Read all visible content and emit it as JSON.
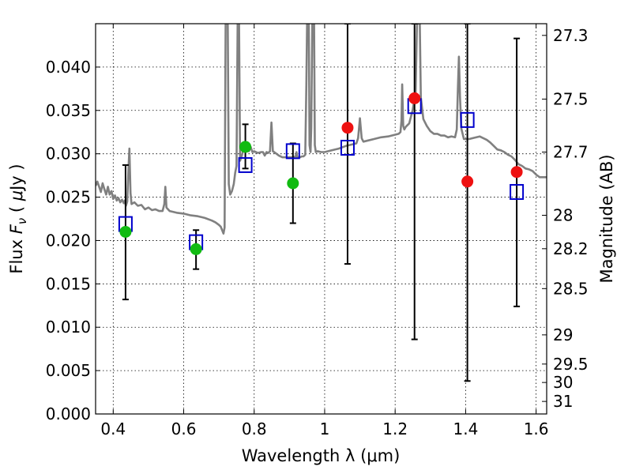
{
  "chart_data": {
    "type": "scatter",
    "xlabel": "Wavelength  λ (μm)",
    "ylabel": "Flux  F_ν  ( μJy )",
    "ylabel_right": "Magnitude (AB)",
    "xlim": [
      0.35,
      1.63
    ],
    "ylim": [
      0.0,
      0.045
    ],
    "grid": true,
    "x_ticks": [
      {
        "value": 0.4,
        "label": "0.4"
      },
      {
        "value": 0.6,
        "label": "0.6"
      },
      {
        "value": 0.8,
        "label": "0.8"
      },
      {
        "value": 1.0,
        "label": "1"
      },
      {
        "value": 1.2,
        "label": "1.2"
      },
      {
        "value": 1.4,
        "label": "1.4"
      },
      {
        "value": 1.6,
        "label": "1.6"
      }
    ],
    "y_ticks": [
      {
        "value": 0.0,
        "label": "0.000"
      },
      {
        "value": 0.005,
        "label": "0.005"
      },
      {
        "value": 0.01,
        "label": "0.010"
      },
      {
        "value": 0.015,
        "label": "0.015"
      },
      {
        "value": 0.02,
        "label": "0.020"
      },
      {
        "value": 0.025,
        "label": "0.025"
      },
      {
        "value": 0.03,
        "label": "0.030"
      },
      {
        "value": 0.035,
        "label": "0.035"
      },
      {
        "value": 0.04,
        "label": "0.040"
      }
    ],
    "mag_ticks": [
      {
        "mag": 27.3,
        "label": "27.3"
      },
      {
        "mag": 27.5,
        "label": "27.5"
      },
      {
        "mag": 27.7,
        "label": "27.7"
      },
      {
        "mag": 28.0,
        "label": "28"
      },
      {
        "mag": 28.2,
        "label": "28.2"
      },
      {
        "mag": 28.5,
        "label": "28.5"
      },
      {
        "mag": 29.0,
        "label": "29"
      },
      {
        "mag": 29.5,
        "label": "29.5"
      },
      {
        "mag": 30.0,
        "label": "30"
      },
      {
        "mag": 31.0,
        "label": "31"
      }
    ],
    "series": [
      {
        "kind": "line",
        "color": "#808080",
        "points": [
          [
            0.35,
            0.0263
          ],
          [
            0.355,
            0.0268
          ],
          [
            0.36,
            0.0262
          ],
          [
            0.365,
            0.0256
          ],
          [
            0.37,
            0.0266
          ],
          [
            0.375,
            0.0259
          ],
          [
            0.38,
            0.0253
          ],
          [
            0.385,
            0.0262
          ],
          [
            0.39,
            0.0253
          ],
          [
            0.395,
            0.0257
          ],
          [
            0.4,
            0.0248
          ],
          [
            0.405,
            0.0252
          ],
          [
            0.41,
            0.0246
          ],
          [
            0.415,
            0.0249
          ],
          [
            0.42,
            0.0244
          ],
          [
            0.425,
            0.0247
          ],
          [
            0.43,
            0.0243
          ],
          [
            0.433,
            0.0246
          ],
          [
            0.436,
            0.024
          ],
          [
            0.44,
            0.0245
          ],
          [
            0.443,
            0.028
          ],
          [
            0.446,
            0.0306
          ],
          [
            0.449,
            0.0255
          ],
          [
            0.452,
            0.0242
          ],
          [
            0.46,
            0.0244
          ],
          [
            0.47,
            0.024
          ],
          [
            0.48,
            0.0241
          ],
          [
            0.49,
            0.0236
          ],
          [
            0.5,
            0.0238
          ],
          [
            0.51,
            0.0235
          ],
          [
            0.52,
            0.0236
          ],
          [
            0.53,
            0.0234
          ],
          [
            0.54,
            0.0234
          ],
          [
            0.545,
            0.0242
          ],
          [
            0.548,
            0.0262
          ],
          [
            0.551,
            0.0238
          ],
          [
            0.56,
            0.0234
          ],
          [
            0.58,
            0.0232
          ],
          [
            0.6,
            0.0231
          ],
          [
            0.62,
            0.0229
          ],
          [
            0.64,
            0.0228
          ],
          [
            0.66,
            0.0226
          ],
          [
            0.68,
            0.0223
          ],
          [
            0.69,
            0.0221
          ],
          [
            0.7,
            0.0218
          ],
          [
            0.705,
            0.0216
          ],
          [
            0.71,
            0.0211
          ],
          [
            0.713,
            0.0208
          ],
          [
            0.716,
            0.0215
          ],
          [
            0.719,
            0.045
          ],
          [
            0.725,
            0.045
          ],
          [
            0.728,
            0.0265
          ],
          [
            0.732,
            0.0253
          ],
          [
            0.737,
            0.0257
          ],
          [
            0.742,
            0.0265
          ],
          [
            0.746,
            0.0278
          ],
          [
            0.75,
            0.0286
          ],
          [
            0.753,
            0.045
          ],
          [
            0.757,
            0.045
          ],
          [
            0.76,
            0.0292
          ],
          [
            0.765,
            0.0298
          ],
          [
            0.77,
            0.0306
          ],
          [
            0.775,
            0.0304
          ],
          [
            0.78,
            0.0305
          ],
          [
            0.785,
            0.0303
          ],
          [
            0.79,
            0.0308
          ],
          [
            0.795,
            0.0302
          ],
          [
            0.8,
            0.0303
          ],
          [
            0.81,
            0.0301
          ],
          [
            0.82,
            0.0302
          ],
          [
            0.825,
            0.0302
          ],
          [
            0.83,
            0.0298
          ],
          [
            0.835,
            0.0302
          ],
          [
            0.84,
            0.0301
          ],
          [
            0.845,
            0.0303
          ],
          [
            0.849,
            0.0336
          ],
          [
            0.853,
            0.0303
          ],
          [
            0.86,
            0.0301
          ],
          [
            0.87,
            0.0298
          ],
          [
            0.88,
            0.0296
          ],
          [
            0.89,
            0.0296
          ],
          [
            0.9,
            0.0296
          ],
          [
            0.91,
            0.0296
          ],
          [
            0.918,
            0.0297
          ],
          [
            0.92,
            0.0302
          ],
          [
            0.922,
            0.0296
          ],
          [
            0.93,
            0.0296
          ],
          [
            0.935,
            0.0297
          ],
          [
            0.94,
            0.0297
          ],
          [
            0.945,
            0.0299
          ],
          [
            0.948,
            0.038
          ],
          [
            0.95,
            0.045
          ],
          [
            0.955,
            0.045
          ],
          [
            0.957,
            0.031
          ],
          [
            0.96,
            0.0302
          ],
          [
            0.962,
            0.033
          ],
          [
            0.965,
            0.045
          ],
          [
            0.97,
            0.045
          ],
          [
            0.972,
            0.031
          ],
          [
            0.975,
            0.0302
          ],
          [
            0.98,
            0.0303
          ],
          [
            0.99,
            0.0302
          ],
          [
            1.0,
            0.0302
          ],
          [
            1.02,
            0.0304
          ],
          [
            1.04,
            0.0306
          ],
          [
            1.06,
            0.0309
          ],
          [
            1.08,
            0.0311
          ],
          [
            1.09,
            0.0312
          ],
          [
            1.095,
            0.0318
          ],
          [
            1.1,
            0.0341
          ],
          [
            1.105,
            0.0318
          ],
          [
            1.11,
            0.0314
          ],
          [
            1.12,
            0.0315
          ],
          [
            1.14,
            0.0317
          ],
          [
            1.16,
            0.0319
          ],
          [
            1.18,
            0.032
          ],
          [
            1.2,
            0.0322
          ],
          [
            1.21,
            0.0323
          ],
          [
            1.215,
            0.0325
          ],
          [
            1.218,
            0.0338
          ],
          [
            1.22,
            0.038
          ],
          [
            1.223,
            0.0332
          ],
          [
            1.226,
            0.0328
          ],
          [
            1.23,
            0.0331
          ],
          [
            1.24,
            0.0335
          ],
          [
            1.25,
            0.0351
          ],
          [
            1.255,
            0.0364
          ],
          [
            1.258,
            0.037
          ],
          [
            1.262,
            0.045
          ],
          [
            1.27,
            0.045
          ],
          [
            1.273,
            0.0365
          ],
          [
            1.28,
            0.034
          ],
          [
            1.29,
            0.0332
          ],
          [
            1.3,
            0.0326
          ],
          [
            1.31,
            0.0323
          ],
          [
            1.32,
            0.0323
          ],
          [
            1.33,
            0.0321
          ],
          [
            1.34,
            0.0321
          ],
          [
            1.35,
            0.0319
          ],
          [
            1.36,
            0.032
          ],
          [
            1.37,
            0.0319
          ],
          [
            1.375,
            0.0328
          ],
          [
            1.378,
            0.0375
          ],
          [
            1.381,
            0.0412
          ],
          [
            1.384,
            0.0365
          ],
          [
            1.388,
            0.0329
          ],
          [
            1.395,
            0.0317
          ],
          [
            1.4,
            0.0317
          ],
          [
            1.41,
            0.0317
          ],
          [
            1.42,
            0.0318
          ],
          [
            1.44,
            0.032
          ],
          [
            1.46,
            0.0316
          ],
          [
            1.47,
            0.0313
          ],
          [
            1.48,
            0.0309
          ],
          [
            1.49,
            0.0305
          ],
          [
            1.5,
            0.0304
          ],
          [
            1.51,
            0.0302
          ],
          [
            1.52,
            0.0299
          ],
          [
            1.53,
            0.0297
          ],
          [
            1.54,
            0.0293
          ],
          [
            1.55,
            0.0288
          ],
          [
            1.56,
            0.0286
          ],
          [
            1.57,
            0.0283
          ],
          [
            1.58,
            0.0282
          ],
          [
            1.59,
            0.028
          ],
          [
            1.6,
            0.0276
          ],
          [
            1.61,
            0.0273
          ],
          [
            1.62,
            0.0273
          ],
          [
            1.63,
            0.0273
          ]
        ]
      },
      {
        "kind": "errorbars",
        "color": "#000000",
        "points": [
          {
            "x": 0.435,
            "low": 0.0132,
            "high": 0.0287
          },
          {
            "x": 0.635,
            "low": 0.0167,
            "high": 0.0212
          },
          {
            "x": 0.775,
            "low": 0.0283,
            "high": 0.0334
          },
          {
            "x": 0.91,
            "low": 0.022,
            "high": 0.0312
          },
          {
            "x": 1.065,
            "low": 0.0173,
            "high": 0.045
          },
          {
            "x": 1.255,
            "low": 0.0086,
            "high": 0.045
          },
          {
            "x": 1.405,
            "low": 0.0038,
            "high": 0.045
          },
          {
            "x": 1.545,
            "low": 0.0124,
            "high": 0.0433
          }
        ]
      },
      {
        "kind": "markers",
        "marker": "square",
        "color": "#0000cc",
        "points": [
          [
            0.435,
            0.0219
          ],
          [
            0.635,
            0.0198
          ],
          [
            0.775,
            0.0287
          ],
          [
            0.91,
            0.0303
          ],
          [
            1.065,
            0.0307
          ],
          [
            1.255,
            0.0355
          ],
          [
            1.405,
            0.0339
          ],
          [
            1.545,
            0.0256
          ]
        ]
      },
      {
        "kind": "markers",
        "marker": "circle",
        "color": "#11bb11",
        "points": [
          [
            0.435,
            0.021
          ],
          [
            0.635,
            0.019
          ],
          [
            0.775,
            0.0308
          ],
          [
            0.91,
            0.0266
          ]
        ]
      },
      {
        "kind": "markers",
        "marker": "circle",
        "color": "#ee1111",
        "points": [
          [
            1.065,
            0.033
          ],
          [
            1.255,
            0.0364
          ],
          [
            1.405,
            0.0268
          ],
          [
            1.545,
            0.0279
          ]
        ]
      }
    ]
  }
}
